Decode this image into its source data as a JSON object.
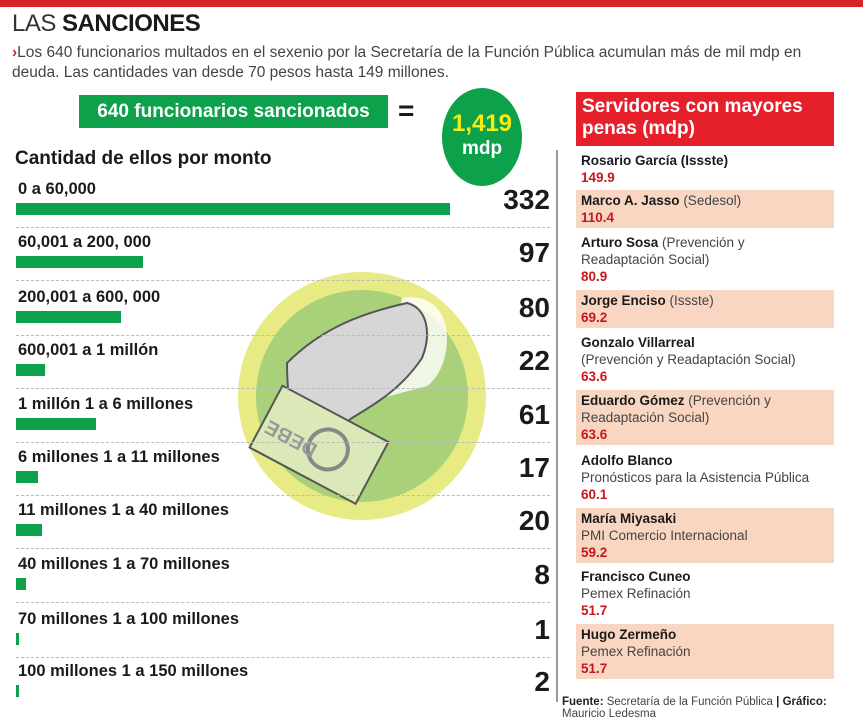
{
  "header": {
    "title_light": "LAS",
    "title_bold": "SANCIONES",
    "intro_arrow": "›",
    "intro": "Los 640 funcionarios multados en el sexenio por la Secretaría de la Función Pública acumulan más de mil mdp en deuda. Las cantidades van desde 70 pesos hasta 149 millones."
  },
  "summary": {
    "officials": "640 funcionarios sancionados",
    "equals": "=",
    "amount": "1,419",
    "unit": "mdp"
  },
  "illustration": {
    "bill_text": "DEBE"
  },
  "colors": {
    "green": "#0da14b",
    "red": "#e5202a",
    "peach": "#f9d6c1",
    "yellow": "#f5ec16"
  },
  "chart_data": {
    "type": "bar",
    "orientation": "horizontal",
    "title": "Cantidad de ellos por monto",
    "categories": [
      "0 a 60,000",
      "60,001 a 200, 000",
      "200,001 a 600, 000",
      "600,001 a 1 millón",
      "1 millón 1 a 6 millones",
      "6 millones 1 a 11 millones",
      "11 millones 1 a 40 millones",
      "40 millones 1 a 70 millones",
      "70 millones 1 a 100 millones",
      "100 millones 1 a 150 millones"
    ],
    "values": [
      332,
      97,
      80,
      22,
      61,
      17,
      20,
      8,
      1,
      2
    ],
    "xlim": [
      0,
      332
    ],
    "grid": false
  },
  "ranking": {
    "title": "Servidores con mayores penas (mdp)",
    "items": [
      {
        "name": "Rosario García (Issste)",
        "agency": "",
        "value": "149.9"
      },
      {
        "name": "Marco A. Jasso",
        "agency": "(Sedesol)",
        "value": "110.4"
      },
      {
        "name": "Arturo Sosa",
        "agency": "(Prevención y Readaptación Social)",
        "value": "80.9"
      },
      {
        "name": "Jorge Enciso",
        "agency": "(Issste)",
        "value": "69.2"
      },
      {
        "name": "Gonzalo Villarreal",
        "agency": "(Prevención y Readaptación Social)",
        "value": "63.6",
        "break": true
      },
      {
        "name": "Eduardo Gómez",
        "agency": "(Prevención y Readaptación Social)",
        "value": "63.6"
      },
      {
        "name": "Adolfo Blanco",
        "agency": "Pronósticos para la Asistencia Pública",
        "value": "60.1",
        "break": true
      },
      {
        "name": "María Miyasaki",
        "agency": "PMI Comercio Internacional",
        "value": "59.2",
        "break": true
      },
      {
        "name": "Francisco Cuneo",
        "agency": "Pemex Refinación",
        "value": "51.7",
        "break": true
      },
      {
        "name": "Hugo Zermeño",
        "agency": "Pemex Refinación",
        "value": "51.7",
        "break": true
      }
    ]
  },
  "footer": {
    "source_label": "Fuente:",
    "source": "Secretaría de la Función Pública",
    "divider": "|",
    "credit_label": "Gráfico:",
    "credit": "Mauricio Ledesma"
  }
}
